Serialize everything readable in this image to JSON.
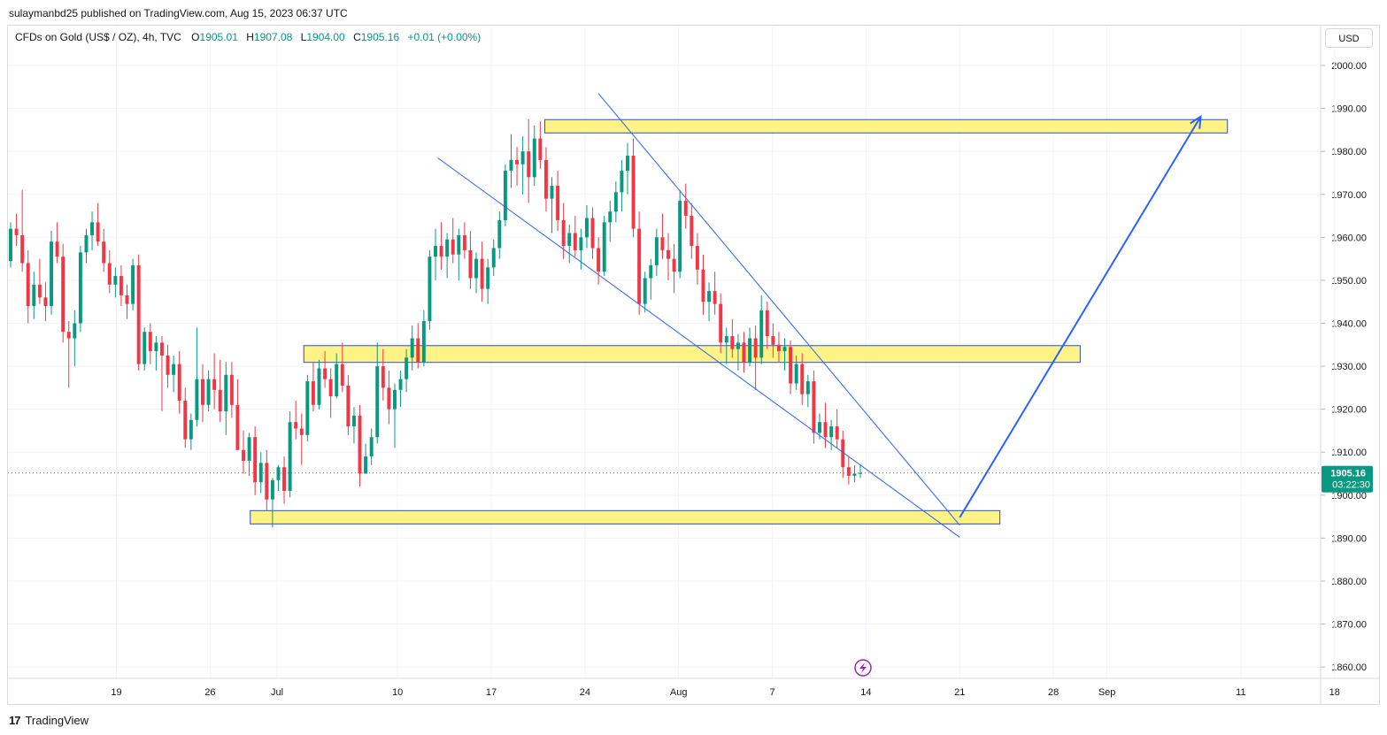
{
  "header": {
    "publisher_line": "sulaymanbd25 published on TradingView.com, Aug 15, 2023 06:37 UTC"
  },
  "legend": {
    "symbol": "CFDs on Gold (US$ / OZ), 4h, TVC",
    "open_label": "O",
    "open": "1905.01",
    "high_label": "H",
    "high": "1907.08",
    "low_label": "L",
    "low": "1904.00",
    "close_label": "C",
    "close": "1905.16",
    "change": "+0.01 (+0.00%)"
  },
  "currency_button": "USD",
  "footer": {
    "brand": "TradingView",
    "logo_glyph": "17"
  },
  "colors": {
    "up": "#089981",
    "down": "#f23645",
    "zone_fill": "#fff385",
    "zone_border": "#2a4dd0",
    "trendline": "#2962ff",
    "price_label_bg": "#089981",
    "grid": "#f0f3fa",
    "lightning_icon": "#9c27b0"
  },
  "chart_data": {
    "type": "candlestick",
    "symbol": "CFDs on Gold (US$ / OZ)",
    "interval": "4h",
    "x_ticks": [
      "19",
      "26",
      "Jul",
      "10",
      "17",
      "24",
      "Aug",
      "7",
      "14",
      "21",
      "28",
      "Sep",
      "11",
      "18"
    ],
    "y_ticks": [
      "2000.00",
      "1990.00",
      "1980.00",
      "1970.00",
      "1960.00",
      "1950.00",
      "1940.00",
      "1930.00",
      "1920.00",
      "1910.00",
      "1900.00",
      "1890.00",
      "1880.00",
      "1870.00",
      "1860.00"
    ],
    "ylim": [
      1856,
      2005
    ],
    "grid": true,
    "last_price": {
      "value": 1905.16,
      "label": "1905.16",
      "countdown": "03:22:30"
    },
    "zones": [
      {
        "from": "Jul 21",
        "to": "Sep 10",
        "low": 1984.3,
        "high": 1987.4
      },
      {
        "from": "Jul 3",
        "to": "Aug 30",
        "low": 1930.9,
        "high": 1934.8
      },
      {
        "from": "Jun 29",
        "to": "Aug 24",
        "low": 1893.3,
        "high": 1896.4
      }
    ],
    "trendlines": [
      {
        "from": [
          "Jul 13",
          1978.5
        ],
        "to": [
          "Aug 21",
          1890.2
        ]
      },
      {
        "from": [
          "Jul 25",
          1993.5
        ],
        "to": [
          "Aug 21",
          1893.0
        ]
      }
    ],
    "projection_arrow": {
      "from": [
        "Aug 21",
        1894.8
      ],
      "to": [
        "Sep 8",
        1988.1
      ]
    },
    "candles_ohlc_4h": [
      [
        1954.5,
        1963.5,
        1953.0,
        1962.0
      ],
      [
        1962.0,
        1965.5,
        1958.0,
        1960.5
      ],
      [
        1960.5,
        1971.0,
        1952.0,
        1954.0
      ],
      [
        1954.0,
        1957.0,
        1940.0,
        1944.0
      ],
      [
        1944.0,
        1952.0,
        1941.0,
        1949.0
      ],
      [
        1949.0,
        1955.0,
        1944.5,
        1946.0
      ],
      [
        1946.0,
        1949.5,
        1940.5,
        1944.0
      ],
      [
        1944.0,
        1961.5,
        1942.0,
        1959.0
      ],
      [
        1959.0,
        1963.5,
        1954.0,
        1955.5
      ],
      [
        1955.5,
        1958.5,
        1935.5,
        1938.0
      ],
      [
        1938.0,
        1940.5,
        1925.0,
        1936.5
      ],
      [
        1936.5,
        1943.0,
        1930.0,
        1940.0
      ],
      [
        1940.0,
        1958.0,
        1938.0,
        1956.5
      ],
      [
        1956.5,
        1962.0,
        1954.0,
        1960.5
      ],
      [
        1960.5,
        1966.0,
        1957.0,
        1963.5
      ],
      [
        1963.5,
        1968.0,
        1958.0,
        1959.0
      ],
      [
        1959.0,
        1962.0,
        1952.0,
        1954.0
      ],
      [
        1954.0,
        1957.0,
        1947.0,
        1949.0
      ],
      [
        1949.0,
        1953.0,
        1946.0,
        1951.0
      ],
      [
        1951.0,
        1953.5,
        1944.0,
        1946.5
      ],
      [
        1946.5,
        1949.0,
        1941.0,
        1944.5
      ],
      [
        1944.5,
        1955.0,
        1943.0,
        1953.5
      ],
      [
        1953.5,
        1956.0,
        1929.0,
        1930.5
      ],
      [
        1930.5,
        1939.0,
        1929.0,
        1938.0
      ],
      [
        1938.0,
        1940.0,
        1930.5,
        1933.5
      ],
      [
        1933.5,
        1937.0,
        1929.0,
        1935.5
      ],
      [
        1935.5,
        1937.0,
        1919.5,
        1932.5
      ],
      [
        1932.5,
        1935.0,
        1925.0,
        1928.0
      ],
      [
        1928.0,
        1932.5,
        1924.0,
        1930.5
      ],
      [
        1930.5,
        1933.5,
        1919.0,
        1922.0
      ],
      [
        1922.0,
        1925.0,
        1911.0,
        1913.0
      ],
      [
        1913.0,
        1919.0,
        1910.5,
        1917.5
      ],
      [
        1917.5,
        1939.0,
        1916.0,
        1927.0
      ],
      [
        1927.0,
        1930.5,
        1917.0,
        1921.0
      ],
      [
        1921.0,
        1929.0,
        1919.5,
        1927.0
      ],
      [
        1927.0,
        1933.0,
        1920.0,
        1924.5
      ],
      [
        1924.5,
        1931.5,
        1917.0,
        1919.5
      ],
      [
        1919.5,
        1931.0,
        1914.0,
        1928.0
      ],
      [
        1928.0,
        1931.0,
        1918.0,
        1921.0
      ],
      [
        1921.0,
        1927.0,
        1914.5,
        1910.5
      ],
      [
        1910.5,
        1915.0,
        1905.0,
        1908.0
      ],
      [
        1908.0,
        1914.5,
        1904.5,
        1913.5
      ],
      [
        1913.5,
        1916.0,
        1900.0,
        1903.0
      ],
      [
        1903.0,
        1910.0,
        1900.5,
        1907.5
      ],
      [
        1907.5,
        1910.5,
        1896.5,
        1899.0
      ],
      [
        1899.0,
        1904.0,
        1892.5,
        1903.5
      ],
      [
        1903.5,
        1907.0,
        1901.0,
        1906.5
      ],
      [
        1906.5,
        1909.0,
        1898.0,
        1901.0
      ],
      [
        1901.0,
        1919.5,
        1899.5,
        1917.0
      ],
      [
        1917.0,
        1922.0,
        1913.0,
        1915.5
      ],
      [
        1915.5,
        1919.0,
        1907.0,
        1914.0
      ],
      [
        1914.0,
        1928.0,
        1912.5,
        1926.5
      ],
      [
        1926.5,
        1931.0,
        1919.5,
        1921.0
      ],
      [
        1921.0,
        1931.5,
        1920.0,
        1929.5
      ],
      [
        1929.5,
        1933.5,
        1925.0,
        1927.0
      ],
      [
        1927.0,
        1929.5,
        1918.0,
        1923.0
      ],
      [
        1923.0,
        1933.0,
        1922.5,
        1930.5
      ],
      [
        1930.5,
        1935.5,
        1924.0,
        1925.5
      ],
      [
        1925.5,
        1928.0,
        1914.0,
        1916.0
      ],
      [
        1916.0,
        1920.5,
        1912.0,
        1918.5
      ],
      [
        1918.5,
        1921.0,
        1902.0,
        1905.0
      ],
      [
        1905.0,
        1912.0,
        1908.0,
        1909.0
      ],
      [
        1909.0,
        1915.5,
        1907.0,
        1913.5
      ],
      [
        1913.5,
        1935.5,
        1912.0,
        1930.0
      ],
      [
        1930.0,
        1934.0,
        1922.0,
        1925.0
      ],
      [
        1925.0,
        1929.0,
        1916.5,
        1920.0
      ],
      [
        1920.0,
        1926.0,
        1911.0,
        1924.5
      ],
      [
        1924.5,
        1929.0,
        1920.5,
        1927.0
      ],
      [
        1927.0,
        1934.0,
        1924.0,
        1932.0
      ],
      [
        1932.0,
        1939.5,
        1929.0,
        1936.5
      ],
      [
        1936.5,
        1940.0,
        1929.5,
        1931.0
      ],
      [
        1931.0,
        1943.0,
        1930.0,
        1940.5
      ],
      [
        1940.5,
        1957.0,
        1938.5,
        1955.5
      ],
      [
        1955.5,
        1962.0,
        1950.0,
        1958.0
      ],
      [
        1958.0,
        1963.5,
        1952.5,
        1955.5
      ],
      [
        1955.5,
        1961.0,
        1950.5,
        1959.5
      ],
      [
        1959.5,
        1964.5,
        1954.0,
        1956.0
      ],
      [
        1956.0,
        1962.0,
        1950.0,
        1960.5
      ],
      [
        1960.5,
        1963.5,
        1955.0,
        1957.0
      ],
      [
        1957.0,
        1961.5,
        1948.0,
        1950.5
      ],
      [
        1950.5,
        1956.5,
        1947.0,
        1955.0
      ],
      [
        1955.0,
        1959.0,
        1945.0,
        1948.0
      ],
      [
        1948.0,
        1955.0,
        1944.5,
        1953.0
      ],
      [
        1953.0,
        1959.5,
        1951.0,
        1957.5
      ],
      [
        1957.5,
        1966.0,
        1955.0,
        1964.0
      ],
      [
        1964.0,
        1977.0,
        1962.5,
        1975.5
      ],
      [
        1975.5,
        1984.0,
        1971.5,
        1978.0
      ],
      [
        1978.0,
        1981.0,
        1972.0,
        1977.0
      ],
      [
        1977.0,
        1983.5,
        1970.0,
        1980.0
      ],
      [
        1980.0,
        1987.5,
        1968.0,
        1974.0
      ],
      [
        1974.0,
        1986.0,
        1972.0,
        1983.0
      ],
      [
        1983.0,
        1987.0,
        1976.0,
        1978.0
      ],
      [
        1978.0,
        1981.0,
        1966.0,
        1969.0
      ],
      [
        1969.0,
        1974.0,
        1961.0,
        1972.0
      ],
      [
        1972.0,
        1975.5,
        1961.5,
        1964.0
      ],
      [
        1964.0,
        1968.0,
        1955.0,
        1958.0
      ],
      [
        1958.0,
        1963.0,
        1954.0,
        1961.0
      ],
      [
        1961.0,
        1965.0,
        1955.5,
        1957.0
      ],
      [
        1957.0,
        1962.0,
        1952.5,
        1960.0
      ],
      [
        1960.0,
        1967.5,
        1957.5,
        1964.5
      ],
      [
        1964.5,
        1967.0,
        1955.0,
        1957.5
      ],
      [
        1957.5,
        1960.0,
        1949.0,
        1952.0
      ],
      [
        1952.0,
        1965.0,
        1951.0,
        1963.5
      ],
      [
        1963.5,
        1968.5,
        1959.0,
        1966.0
      ],
      [
        1966.0,
        1973.0,
        1963.5,
        1970.5
      ],
      [
        1970.5,
        1978.0,
        1966.0,
        1975.5
      ],
      [
        1975.5,
        1982.0,
        1970.0,
        1979.0
      ],
      [
        1979.0,
        1983.0,
        1960.0,
        1962.0
      ],
      [
        1962.0,
        1966.0,
        1942.0,
        1944.5
      ],
      [
        1944.5,
        1952.0,
        1942.5,
        1950.5
      ],
      [
        1950.5,
        1955.0,
        1945.5,
        1953.5
      ],
      [
        1953.5,
        1962.0,
        1951.0,
        1960.0
      ],
      [
        1960.0,
        1965.5,
        1955.0,
        1957.0
      ],
      [
        1957.0,
        1961.0,
        1950.0,
        1955.0
      ],
      [
        1955.0,
        1958.5,
        1947.0,
        1952.0
      ],
      [
        1952.0,
        1971.0,
        1950.5,
        1968.5
      ],
      [
        1968.5,
        1972.5,
        1962.0,
        1965.0
      ],
      [
        1965.0,
        1968.0,
        1955.0,
        1958.0
      ],
      [
        1958.0,
        1961.0,
        1949.0,
        1952.5
      ],
      [
        1952.5,
        1956.0,
        1942.0,
        1945.0
      ],
      [
        1945.0,
        1949.5,
        1940.5,
        1947.5
      ],
      [
        1947.5,
        1952.0,
        1942.0,
        1944.5
      ],
      [
        1944.5,
        1947.0,
        1933.0,
        1935.5
      ],
      [
        1935.5,
        1939.0,
        1930.5,
        1937.0
      ],
      [
        1937.0,
        1941.0,
        1932.0,
        1934.0
      ],
      [
        1934.0,
        1937.5,
        1929.0,
        1935.5
      ],
      [
        1935.5,
        1938.0,
        1928.5,
        1931.0
      ],
      [
        1931.0,
        1939.0,
        1930.0,
        1936.5
      ],
      [
        1936.5,
        1939.5,
        1924.5,
        1932.0
      ],
      [
        1932.0,
        1946.5,
        1930.5,
        1943.0
      ],
      [
        1943.0,
        1945.0,
        1934.0,
        1937.0
      ],
      [
        1937.0,
        1940.0,
        1932.0,
        1935.0
      ],
      [
        1935.0,
        1938.0,
        1931.0,
        1933.5
      ],
      [
        1933.5,
        1936.5,
        1929.0,
        1934.5
      ],
      [
        1934.5,
        1936.0,
        1923.5,
        1926.0
      ],
      [
        1926.0,
        1932.5,
        1924.5,
        1930.5
      ],
      [
        1930.5,
        1933.0,
        1921.0,
        1923.5
      ],
      [
        1923.5,
        1928.0,
        1920.5,
        1926.5
      ],
      [
        1926.5,
        1929.0,
        1912.0,
        1914.5
      ],
      [
        1914.5,
        1919.0,
        1913.0,
        1917.0
      ],
      [
        1917.0,
        1921.5,
        1911.0,
        1913.5
      ],
      [
        1913.5,
        1917.5,
        1910.5,
        1916.0
      ],
      [
        1916.0,
        1920.0,
        1911.0,
        1913.0
      ],
      [
        1913.0,
        1915.0,
        1904.0,
        1906.5
      ],
      [
        1906.5,
        1909.0,
        1902.5,
        1904.5
      ],
      [
        1904.5,
        1907.0,
        1903.0,
        1905.01
      ],
      [
        1905.01,
        1907.08,
        1904.0,
        1905.16
      ]
    ]
  }
}
